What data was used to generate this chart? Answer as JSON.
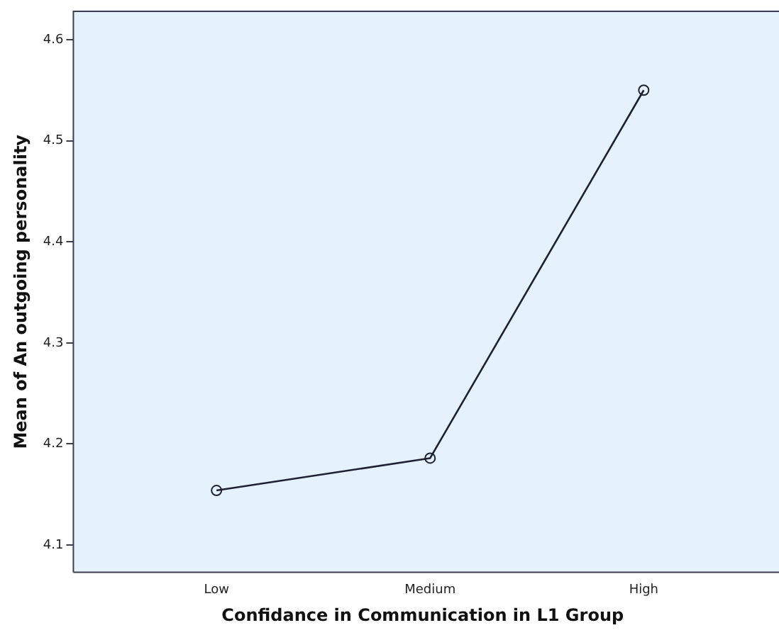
{
  "chart_data": {
    "type": "line",
    "xlabel": "Confidance in Communication in L1 Group",
    "ylabel": "Mean of An outgoing personality",
    "categories": [
      "Low",
      "Medium",
      "High"
    ],
    "series": [
      {
        "color": "#1e2033",
        "values": [
          4.154,
          4.186,
          4.55
        ]
      }
    ],
    "ylim": [
      4.073,
      4.628
    ],
    "yticks": [
      4.1,
      4.2,
      4.3,
      4.4,
      4.5,
      4.6
    ],
    "grid": false,
    "legend": false,
    "marker": "circle",
    "line_style": "solid"
  }
}
